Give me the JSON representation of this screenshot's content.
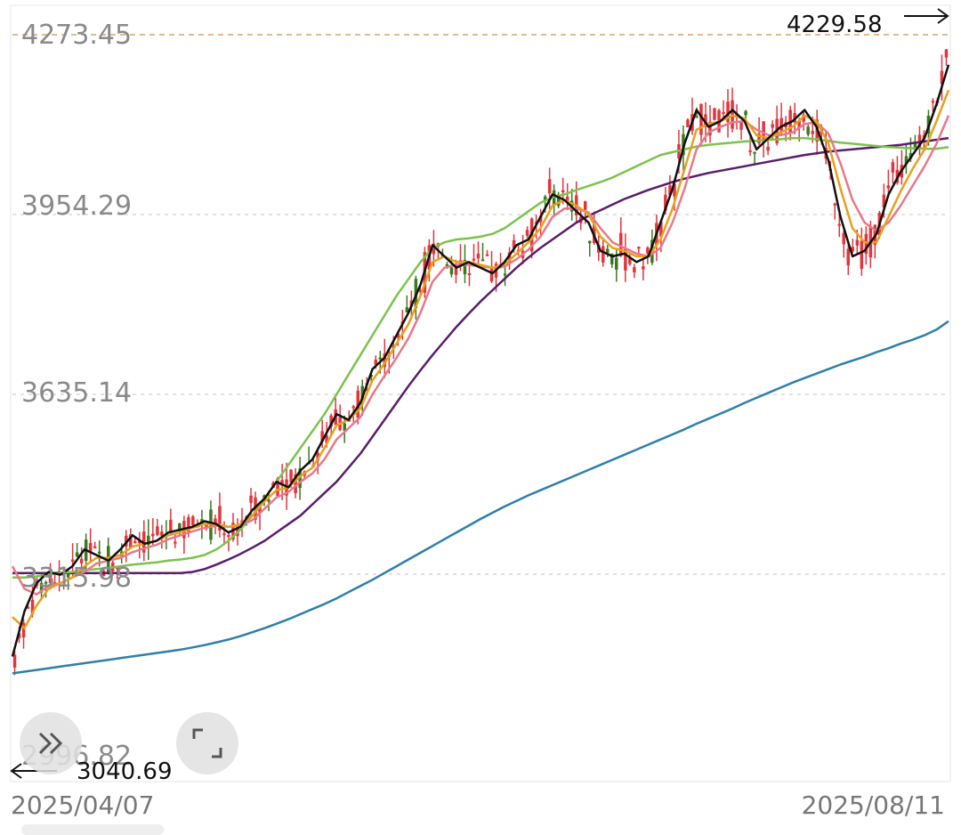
{
  "chart_data": {
    "type": "candlestick",
    "y_ticks": [
      "4273.45",
      "3954.29",
      "3635.14",
      "3315.98",
      "2996.82"
    ],
    "high_label": "4229.58",
    "low_label": "3040.69",
    "start_date": "2025/04/07",
    "end_date": "2025/08/11",
    "ylim": [
      2996.82,
      4273.45
    ],
    "grid": true,
    "moving_averages": [
      {
        "color": "#111111",
        "values": [
          3170,
          3250,
          3300,
          3320,
          3315,
          3330,
          3360,
          3350,
          3340,
          3360,
          3385,
          3370,
          3375,
          3390,
          3395,
          3400,
          3410,
          3405,
          3390,
          3400,
          3430,
          3450,
          3480,
          3470,
          3500,
          3520,
          3560,
          3600,
          3590,
          3620,
          3680,
          3700,
          3740,
          3780,
          3830,
          3900,
          3880,
          3860,
          3870,
          3860,
          3850,
          3870,
          3900,
          3910,
          3950,
          3990,
          3980,
          3960,
          3940,
          3890,
          3880,
          3885,
          3870,
          3880,
          3940,
          4000,
          4080,
          4140,
          4110,
          4120,
          4140,
          4120,
          4070,
          4090,
          4110,
          4120,
          4140,
          4110,
          4050,
          3950,
          3880,
          3890,
          3920,
          3990,
          4030,
          4060,
          4090,
          4150,
          4220
        ],
        "style": "line"
      },
      {
        "color": "#e6a11e",
        "values": [
          3240,
          3220,
          3260,
          3290,
          3300,
          3310,
          3330,
          3345,
          3345,
          3350,
          3365,
          3370,
          3375,
          3385,
          3390,
          3398,
          3405,
          3405,
          3400,
          3405,
          3420,
          3445,
          3465,
          3470,
          3490,
          3505,
          3540,
          3580,
          3590,
          3610,
          3660,
          3690,
          3725,
          3760,
          3810,
          3870,
          3880,
          3870,
          3870,
          3865,
          3860,
          3865,
          3885,
          3905,
          3930,
          3970,
          3980,
          3970,
          3955,
          3915,
          3895,
          3890,
          3880,
          3880,
          3910,
          3965,
          4035,
          4105,
          4115,
          4120,
          4130,
          4125,
          4095,
          4090,
          4100,
          4110,
          4130,
          4120,
          4080,
          4000,
          3930,
          3905,
          3905,
          3950,
          3995,
          4035,
          4070,
          4120,
          4175
        ],
        "style": "line"
      },
      {
        "color": "#e8788a",
        "values": [
          3330,
          3290,
          3280,
          3295,
          3300,
          3310,
          3320,
          3335,
          3340,
          3345,
          3355,
          3362,
          3368,
          3378,
          3385,
          3392,
          3398,
          3402,
          3400,
          3402,
          3412,
          3432,
          3452,
          3462,
          3480,
          3495,
          3520,
          3555,
          3575,
          3595,
          3635,
          3668,
          3700,
          3735,
          3780,
          3835,
          3860,
          3865,
          3865,
          3862,
          3860,
          3862,
          3875,
          3892,
          3915,
          3950,
          3965,
          3965,
          3958,
          3930,
          3905,
          3895,
          3885,
          3880,
          3895,
          3940,
          4000,
          4070,
          4100,
          4110,
          4118,
          4120,
          4105,
          4095,
          4095,
          4100,
          4115,
          4118,
          4098,
          4045,
          3980,
          3940,
          3925,
          3940,
          3970,
          4005,
          4040,
          4080,
          4130
        ],
        "style": "line"
      },
      {
        "color": "#7cc24e",
        "values": [
          3310,
          3310,
          3312,
          3315,
          3318,
          3320,
          3323,
          3325,
          3327,
          3330,
          3333,
          3335,
          3337,
          3340,
          3342,
          3345,
          3350,
          3360,
          3375,
          3395,
          3420,
          3450,
          3480,
          3510,
          3540,
          3570,
          3600,
          3635,
          3670,
          3705,
          3740,
          3775,
          3810,
          3840,
          3870,
          3895,
          3905,
          3910,
          3912,
          3915,
          3920,
          3930,
          3945,
          3960,
          3975,
          3985,
          3990,
          3998,
          4005,
          4012,
          4020,
          4030,
          4040,
          4050,
          4060,
          4065,
          4070,
          4075,
          4078,
          4080,
          4082,
          4084,
          4085,
          4087,
          4088,
          4090,
          4090,
          4088,
          4085,
          4082,
          4080,
          4078,
          4076,
          4074,
          4073,
          4072,
          4071,
          4071,
          4074
        ],
        "style": "line"
      },
      {
        "color": "#5a1d6a",
        "values": [
          3318,
          3318,
          3318,
          3318,
          3318,
          3318,
          3318,
          3318,
          3318,
          3318,
          3318,
          3318,
          3318,
          3318,
          3318,
          3320,
          3325,
          3333,
          3342,
          3352,
          3363,
          3375,
          3390,
          3405,
          3420,
          3440,
          3460,
          3480,
          3505,
          3530,
          3560,
          3590,
          3620,
          3650,
          3678,
          3705,
          3730,
          3755,
          3778,
          3800,
          3820,
          3840,
          3860,
          3878,
          3895,
          3910,
          3925,
          3940,
          3952,
          3962,
          3972,
          3982,
          3990,
          3998,
          4005,
          4012,
          4018,
          4023,
          4028,
          4032,
          4036,
          4040,
          4044,
          4048,
          4052,
          4056,
          4060,
          4063,
          4066,
          4068,
          4070,
          4072,
          4074,
          4076,
          4078,
          4081,
          4084,
          4087,
          4090
        ],
        "style": "line"
      },
      {
        "color": "#2f7faa",
        "values": [
          3140,
          3143,
          3146,
          3149,
          3152,
          3155,
          3158,
          3161,
          3164,
          3167,
          3170,
          3173,
          3176,
          3179,
          3182,
          3186,
          3190,
          3195,
          3200,
          3206,
          3213,
          3220,
          3228,
          3236,
          3245,
          3254,
          3263,
          3273,
          3284,
          3295,
          3306,
          3318,
          3330,
          3342,
          3354,
          3366,
          3378,
          3390,
          3402,
          3414,
          3425,
          3436,
          3446,
          3456,
          3465,
          3474,
          3483,
          3492,
          3501,
          3510,
          3519,
          3528,
          3537,
          3546,
          3555,
          3564,
          3573,
          3583,
          3592,
          3601,
          3610,
          3620,
          3629,
          3638,
          3647,
          3656,
          3664,
          3672,
          3680,
          3688,
          3695,
          3702,
          3710,
          3717,
          3725,
          3732,
          3740,
          3750,
          3765
        ],
        "style": "line"
      }
    ]
  },
  "controls": {
    "expand_icon": "double-chevron-right-icon",
    "fullscreen_icon": "fullscreen-corners-icon"
  },
  "colors": {
    "up": "#e0363d",
    "down": "#3a7a1e",
    "grid": "#d8d8d8",
    "high_line": "#d9a36a"
  }
}
